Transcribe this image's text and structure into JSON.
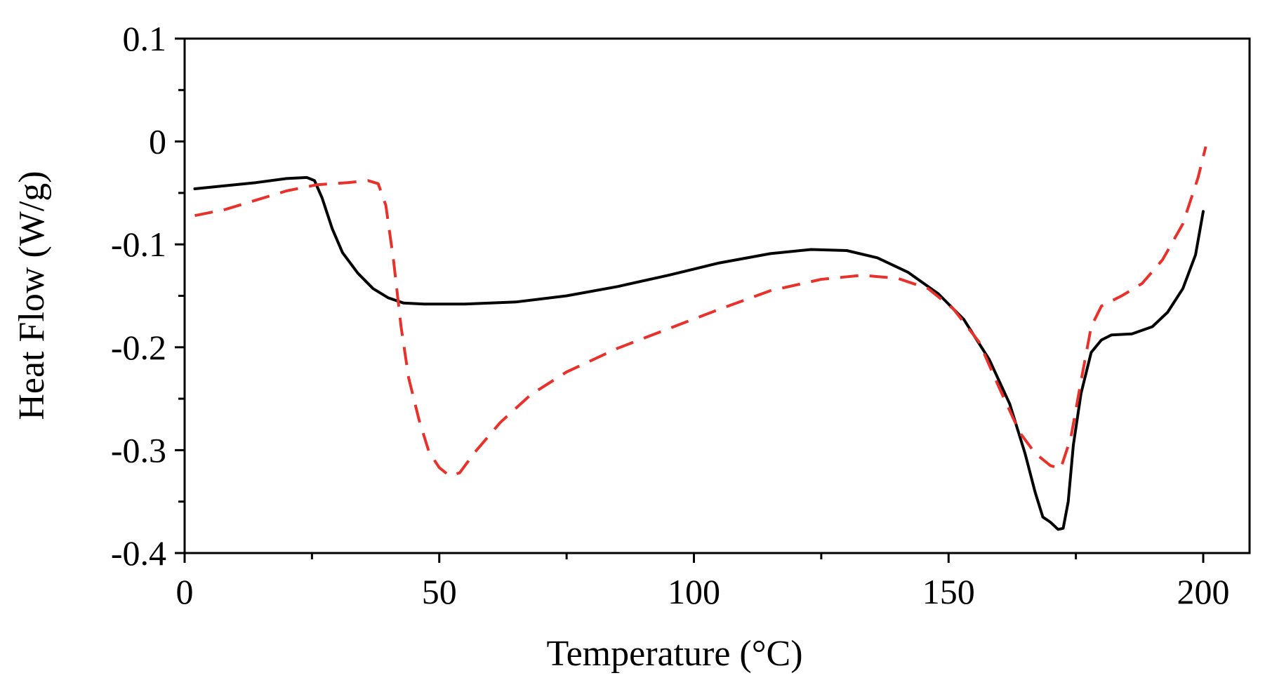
{
  "chart_data": {
    "type": "line",
    "title": "",
    "xlabel": "Temperature (°C)",
    "ylabel": "Heat Flow (W/g)",
    "xlim": [
      0,
      210
    ],
    "ylim": [
      -0.4,
      0.1
    ],
    "xticks": [
      0,
      50,
      100,
      150,
      200
    ],
    "xtick_labels": [
      "0",
      "50",
      "100",
      "150",
      "200"
    ],
    "xminor_step": 25,
    "yticks": [
      0.1,
      0,
      -0.1,
      -0.2,
      -0.3,
      -0.4
    ],
    "ytick_labels": [
      "0.1",
      "0",
      "-0.1",
      "-0.2",
      "-0.3",
      "-0.4"
    ],
    "yminor_step": 0.05,
    "grid": false,
    "legend": "none",
    "series": [
      {
        "name": "solid",
        "color": "#000000",
        "style": "solid",
        "points": [
          [
            2,
            -0.046
          ],
          [
            8,
            -0.043
          ],
          [
            14,
            -0.04
          ],
          [
            20,
            -0.036
          ],
          [
            24,
            -0.035
          ],
          [
            25.5,
            -0.038
          ],
          [
            27,
            -0.055
          ],
          [
            29,
            -0.085
          ],
          [
            31,
            -0.108
          ],
          [
            34,
            -0.128
          ],
          [
            37,
            -0.143
          ],
          [
            40,
            -0.152
          ],
          [
            43,
            -0.157
          ],
          [
            47,
            -0.158
          ],
          [
            55,
            -0.158
          ],
          [
            65,
            -0.156
          ],
          [
            75,
            -0.15
          ],
          [
            85,
            -0.141
          ],
          [
            95,
            -0.13
          ],
          [
            105,
            -0.118
          ],
          [
            115,
            -0.109
          ],
          [
            123,
            -0.105
          ],
          [
            130,
            -0.106
          ],
          [
            136,
            -0.113
          ],
          [
            142,
            -0.127
          ],
          [
            148,
            -0.148
          ],
          [
            153,
            -0.173
          ],
          [
            158,
            -0.212
          ],
          [
            162,
            -0.255
          ],
          [
            165,
            -0.303
          ],
          [
            167,
            -0.341
          ],
          [
            168.5,
            -0.365
          ],
          [
            170,
            -0.37
          ],
          [
            171.5,
            -0.377
          ],
          [
            172.5,
            -0.376
          ],
          [
            173.5,
            -0.35
          ],
          [
            174.5,
            -0.295
          ],
          [
            176,
            -0.245
          ],
          [
            178,
            -0.205
          ],
          [
            180,
            -0.193
          ],
          [
            182,
            -0.188
          ],
          [
            186,
            -0.187
          ],
          [
            190,
            -0.18
          ],
          [
            193,
            -0.166
          ],
          [
            196,
            -0.143
          ],
          [
            198.5,
            -0.11
          ],
          [
            200,
            -0.068
          ]
        ]
      },
      {
        "name": "dashed",
        "color": "#e8312a",
        "style": "dashed",
        "points": [
          [
            2,
            -0.072
          ],
          [
            8,
            -0.066
          ],
          [
            14,
            -0.057
          ],
          [
            20,
            -0.048
          ],
          [
            26,
            -0.042
          ],
          [
            32,
            -0.04
          ],
          [
            36,
            -0.038
          ],
          [
            38,
            -0.041
          ],
          [
            39.5,
            -0.062
          ],
          [
            41,
            -0.115
          ],
          [
            42.5,
            -0.18
          ],
          [
            44,
            -0.23
          ],
          [
            46,
            -0.27
          ],
          [
            48,
            -0.302
          ],
          [
            50,
            -0.317
          ],
          [
            52,
            -0.325
          ],
          [
            54,
            -0.322
          ],
          [
            57,
            -0.302
          ],
          [
            62,
            -0.273
          ],
          [
            68,
            -0.246
          ],
          [
            75,
            -0.224
          ],
          [
            85,
            -0.201
          ],
          [
            95,
            -0.182
          ],
          [
            105,
            -0.163
          ],
          [
            115,
            -0.145
          ],
          [
            125,
            -0.134
          ],
          [
            133,
            -0.13
          ],
          [
            140,
            -0.133
          ],
          [
            146,
            -0.143
          ],
          [
            151,
            -0.163
          ],
          [
            156,
            -0.195
          ],
          [
            160,
            -0.24
          ],
          [
            164,
            -0.283
          ],
          [
            167,
            -0.303
          ],
          [
            170,
            -0.315
          ],
          [
            172,
            -0.318
          ],
          [
            174,
            -0.288
          ],
          [
            176,
            -0.233
          ],
          [
            178,
            -0.18
          ],
          [
            180,
            -0.16
          ],
          [
            184,
            -0.15
          ],
          [
            188,
            -0.138
          ],
          [
            192,
            -0.115
          ],
          [
            196,
            -0.08
          ],
          [
            199,
            -0.035
          ],
          [
            200.5,
            -0.005
          ]
        ]
      }
    ]
  }
}
